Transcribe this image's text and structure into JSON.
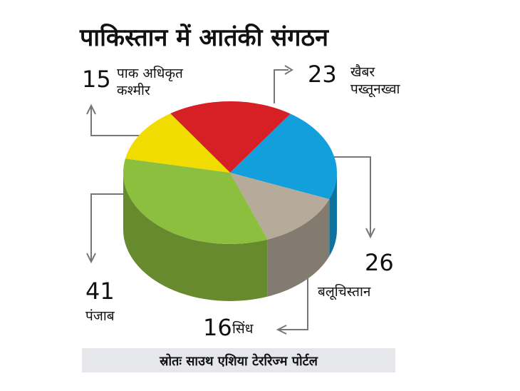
{
  "chart_data": {
    "type": "pie",
    "title": "पाकिस्तान में आतंकी संगठन",
    "categories": [
      "खैबर पख्तूनख्वा",
      "बलूचिस्तान",
      "सिंध",
      "पंजाब",
      "पाक अधिकृत कश्मीर"
    ],
    "values": [
      23,
      26,
      16,
      41,
      15
    ],
    "colors": [
      "#d71f26",
      "#129fdb",
      "#b6ab9a",
      "#8dbf3f",
      "#f0dc00"
    ],
    "source": "स्रोतः साउथ एशिया टेररिज्म पोर्टल"
  }
}
